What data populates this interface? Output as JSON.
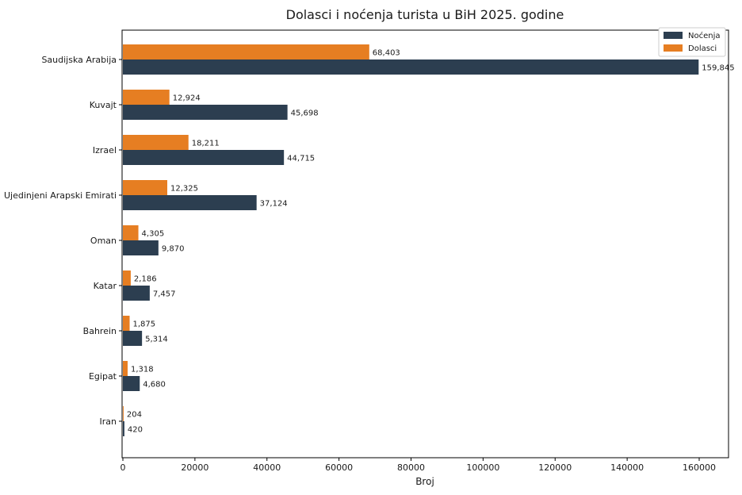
{
  "chart_data": {
    "type": "bar",
    "orientation": "horizontal",
    "title": "Dolasci i noćenja turista u BiH 2025. godine",
    "xlabel": "Broj",
    "ylabel": "",
    "xlim": [
      0,
      168000
    ],
    "xticks": [
      0,
      20000,
      40000,
      60000,
      80000,
      100000,
      120000,
      140000,
      160000
    ],
    "xtick_labels": [
      "0",
      "20000",
      "40000",
      "60000",
      "80000",
      "100000",
      "120000",
      "140000",
      "160000"
    ],
    "grid": false,
    "legend_position": "top-right",
    "categories": [
      "Saudijska Arabija",
      "Kuvajt",
      "Izrael",
      "Ujedinjeni Arapski Emirati",
      "Oman",
      "Katar",
      "Bahrein",
      "Egipat",
      "Iran"
    ],
    "series": [
      {
        "name": "Noćenja",
        "color": "#2c3e50",
        "values": [
          159845,
          45698,
          44715,
          37124,
          9870,
          7457,
          5314,
          4680,
          420
        ],
        "labels": [
          "159,845",
          "45,698",
          "44,715",
          "37,124",
          "9,870",
          "7,457",
          "5,314",
          "4,680",
          "420"
        ]
      },
      {
        "name": "Dolasci",
        "color": "#e67e22",
        "values": [
          68403,
          12924,
          18211,
          12325,
          4305,
          2186,
          1875,
          1318,
          204
        ],
        "labels": [
          "68,403",
          "12,924",
          "18,211",
          "12,325",
          "4,305",
          "2,186",
          "1,875",
          "1,318",
          "204"
        ]
      }
    ]
  }
}
